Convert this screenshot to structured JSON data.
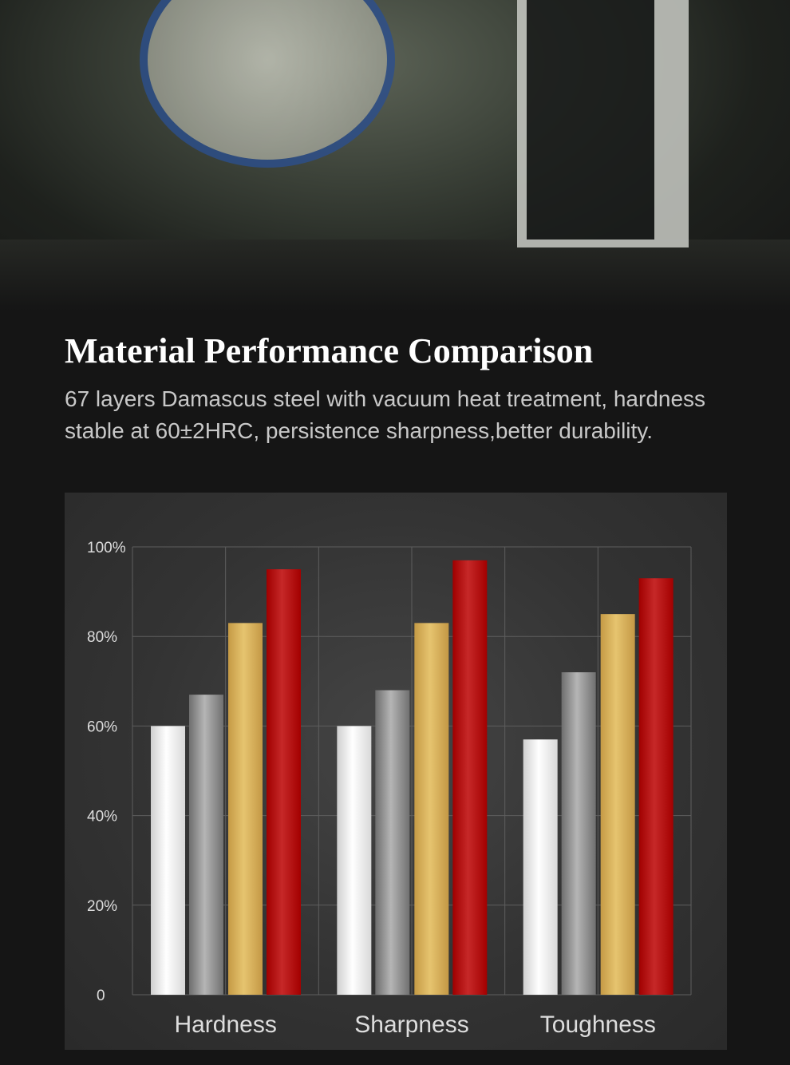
{
  "heading": {
    "title": "Material Performance Comparison",
    "description": "67 layers Damascus steel with vacuum heat treatment, hardness stable at 60±2HRC, persistence sharpness,better durability."
  },
  "chart_data": {
    "type": "bar",
    "categories": [
      "Hardness",
      "Sharpness",
      "Toughness"
    ],
    "y_ticks": [
      "0",
      "20%",
      "40%",
      "60%",
      "80%",
      "100%"
    ],
    "ylim": [
      0,
      100
    ],
    "grid": true,
    "series": [
      {
        "color": "#f0f0f0",
        "values": [
          60,
          60,
          57
        ]
      },
      {
        "color": "#9a9a9a",
        "values": [
          67,
          68,
          72
        ]
      },
      {
        "color": "#e0bc68",
        "values": [
          83,
          83,
          85
        ]
      },
      {
        "color": "#c01a1a",
        "values": [
          95,
          97,
          93
        ]
      }
    ]
  }
}
